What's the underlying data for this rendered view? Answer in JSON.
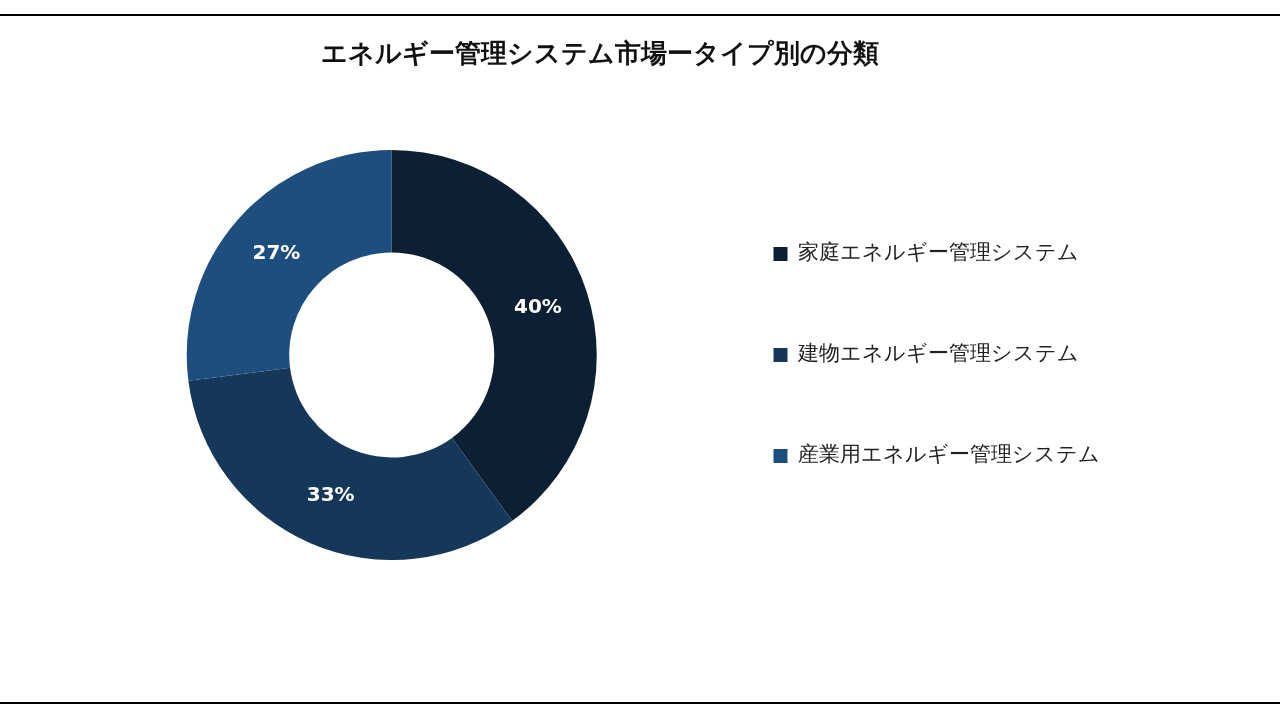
{
  "chart_data": {
    "type": "donut",
    "title": "エネルギー管理システム市場ータイプ別の分類",
    "categories": [
      "家庭エネルギー管理システム",
      "建物エネルギー管理システム",
      "産業用エネルギー管理システム"
    ],
    "values": [
      40,
      33,
      27
    ],
    "value_labels": [
      "40%",
      "33%",
      "27%"
    ],
    "colors": [
      "#0d1f33",
      "#15375a",
      "#1d4e7e"
    ],
    "legend": "right"
  }
}
